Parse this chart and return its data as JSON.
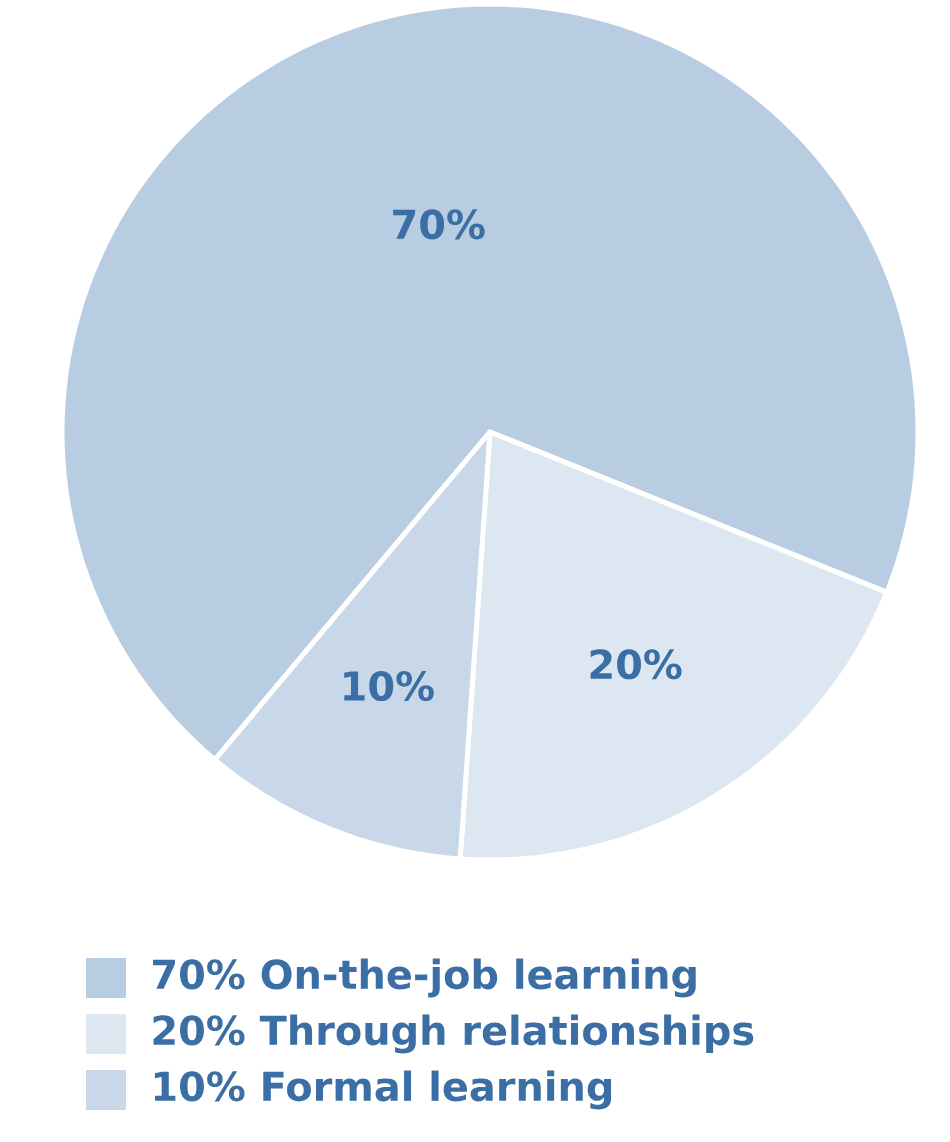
{
  "chart_data": {
    "type": "pie",
    "categories": [
      "70% On-the-job learning",
      "20% Through relationships",
      "10% Formal learning"
    ],
    "values": [
      70,
      20,
      10
    ],
    "value_labels": [
      "70%",
      "20%",
      "10%"
    ],
    "colors": [
      "#b8cde1",
      "#dce7f1",
      "#c8d8e9"
    ],
    "legend": "bottom"
  }
}
